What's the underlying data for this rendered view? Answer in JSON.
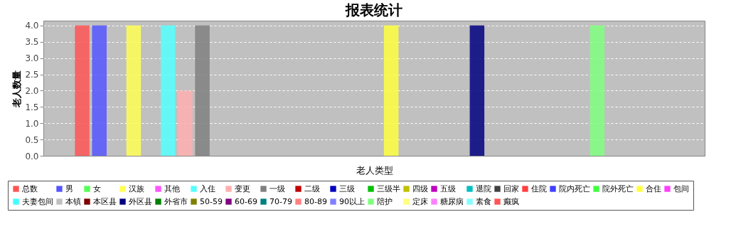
{
  "chart_data": {
    "type": "bar",
    "title": "报表统计",
    "xlabel": "老人类型",
    "ylabel": "老人数量",
    "categories": [
      null
    ],
    "ylim": [
      0,
      4.15
    ],
    "yticks": [
      {
        "value": 0,
        "label": "0.0"
      },
      {
        "value": 0.5,
        "label": "0.5"
      },
      {
        "value": 1,
        "label": "1.0"
      },
      {
        "value": 1.5,
        "label": "1.5"
      },
      {
        "value": 2,
        "label": "2.0"
      },
      {
        "value": 2.5,
        "label": "2.5"
      },
      {
        "value": 3,
        "label": "3.0"
      },
      {
        "value": 3.5,
        "label": "3.5"
      },
      {
        "value": 4,
        "label": "4.0"
      }
    ],
    "grid": "y",
    "legend": "bottom",
    "series": [
      {
        "name": "总数",
        "color": "#ff5555",
        "values": [
          4
        ]
      },
      {
        "name": "男",
        "color": "#5555ff",
        "values": [
          4
        ]
      },
      {
        "name": "女",
        "color": "#55ff55",
        "values": [
          0
        ]
      },
      {
        "name": "汉族",
        "color": "#ffff55",
        "values": [
          4
        ]
      },
      {
        "name": "其他",
        "color": "#ff55ff",
        "values": [
          0
        ]
      },
      {
        "name": "入住",
        "color": "#55ffff",
        "values": [
          4
        ]
      },
      {
        "name": "变更",
        "color": "#ffafaf",
        "values": [
          2
        ]
      },
      {
        "name": "一级",
        "color": "#808080",
        "values": [
          4
        ]
      },
      {
        "name": "二级",
        "color": "#c00000",
        "values": [
          0
        ]
      },
      {
        "name": "三级",
        "color": "#0000c0",
        "values": [
          0
        ]
      },
      {
        "name": "三级半",
        "color": "#00c000",
        "values": [
          0
        ]
      },
      {
        "name": "四级",
        "color": "#c0c000",
        "values": [
          0
        ]
      },
      {
        "name": "五级",
        "color": "#c000c0",
        "values": [
          0
        ]
      },
      {
        "name": "退院",
        "color": "#00c0c0",
        "values": [
          0
        ]
      },
      {
        "name": "回家",
        "color": "#404040",
        "values": [
          0
        ]
      },
      {
        "name": "住院",
        "color": "#ff4040",
        "values": [
          0
        ]
      },
      {
        "name": "院内死亡",
        "color": "#4040ff",
        "values": [
          0
        ]
      },
      {
        "name": "院外死亡",
        "color": "#40ff40",
        "values": [
          0
        ]
      },
      {
        "name": "合住",
        "color": "#ffff40",
        "values": [
          4
        ]
      },
      {
        "name": "包间",
        "color": "#ff40ff",
        "values": [
          0
        ]
      },
      {
        "name": "夫妻包间",
        "color": "#40ffff",
        "values": [
          0
        ]
      },
      {
        "name": "本镇",
        "color": "#c0c0c0",
        "values": [
          0
        ]
      },
      {
        "name": "本区县",
        "color": "#800000",
        "values": [
          0
        ]
      },
      {
        "name": "外区县",
        "color": "#000080",
        "values": [
          4
        ]
      },
      {
        "name": "外省市",
        "color": "#008000",
        "values": [
          0
        ]
      },
      {
        "name": "50-59",
        "color": "#808000",
        "values": [
          0
        ]
      },
      {
        "name": "60-69",
        "color": "#800080",
        "values": [
          0
        ]
      },
      {
        "name": "70-79",
        "color": "#008080",
        "values": [
          0
        ]
      },
      {
        "name": "80-89",
        "color": "#ff8080",
        "values": [
          0
        ]
      },
      {
        "name": "90以上",
        "color": "#8080ff",
        "values": [
          0
        ]
      },
      {
        "name": "陪护",
        "color": "#80ff80",
        "values": [
          4
        ]
      },
      {
        "name": "定床",
        "color": "#ffff80",
        "values": [
          0
        ]
      },
      {
        "name": "糖尿病",
        "color": "#ff80ff",
        "values": [
          0
        ]
      },
      {
        "name": "素食",
        "color": "#80ffff",
        "values": [
          0
        ]
      },
      {
        "name": "癫疯",
        "color": "#ff5555",
        "values": [
          0
        ]
      }
    ]
  }
}
